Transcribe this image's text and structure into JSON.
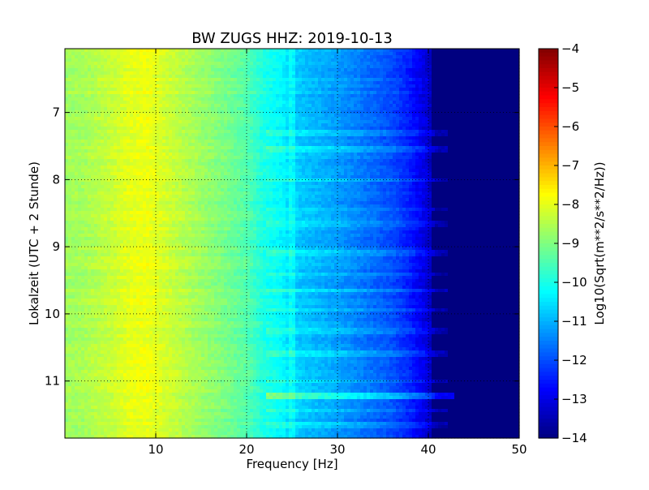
{
  "chart_data": {
    "type": "heatmap",
    "title": "BW ZUGS HHZ: 2019-10-13",
    "xlabel": "Frequency [Hz]",
    "ylabel": "Lokalzeit (UTC + 2 Stunde)",
    "xlim": [
      0,
      50
    ],
    "ylim": [
      6.05,
      11.85
    ],
    "y_inverted": true,
    "x_ticks": [
      10,
      20,
      30,
      40,
      50
    ],
    "x_tick_labels": [
      "10",
      "20",
      "30",
      "40",
      "50"
    ],
    "y_ticks": [
      7,
      8,
      9,
      10,
      11
    ],
    "y_tick_labels": [
      "7",
      "8",
      "9",
      "10",
      "11"
    ],
    "grid": true,
    "colormap": "jet",
    "colorbar": {
      "label": "Log10(Sqrt(m**2/s**2/Hz))",
      "range": [
        -14,
        -4
      ],
      "ticks": [
        -4,
        -5,
        -6,
        -7,
        -8,
        -9,
        -10,
        -11,
        -12,
        -13,
        -14
      ],
      "tick_labels": [
        "−4",
        "−5",
        "−6",
        "−7",
        "−8",
        "−9",
        "−10",
        "−11",
        "−12",
        "−13",
        "−14"
      ]
    },
    "spectrum_profile": {
      "frequency_hz": [
        0,
        2,
        5,
        7,
        9,
        12,
        15,
        18,
        20,
        22,
        24,
        25,
        28,
        30,
        33,
        36,
        38,
        40,
        41,
        45,
        50
      ],
      "log10_amplitude": [
        -8.7,
        -8.6,
        -8.3,
        -8.0,
        -7.9,
        -8.3,
        -8.7,
        -9.1,
        -9.4,
        -10.0,
        -10.3,
        -10.7,
        -11.0,
        -11.2,
        -11.6,
        -12.0,
        -12.5,
        -13.2,
        -13.9,
        -14.0,
        -14.0
      ]
    },
    "bright_bands": [
      {
        "time": 7.3,
        "strength": 0.25,
        "fmax": 42
      },
      {
        "time": 7.55,
        "strength": 0.3,
        "fmax": 42
      },
      {
        "time": 8.0,
        "strength": 0.25,
        "fmax": 42
      },
      {
        "time": 8.45,
        "strength": 0.2,
        "fmax": 42
      },
      {
        "time": 8.65,
        "strength": 0.25,
        "fmax": 42
      },
      {
        "time": 9.1,
        "strength": 0.3,
        "fmax": 42
      },
      {
        "time": 9.4,
        "strength": 0.25,
        "fmax": 42
      },
      {
        "time": 9.65,
        "strength": 0.25,
        "fmax": 42
      },
      {
        "time": 9.95,
        "strength": 0.25,
        "fmax": 42
      },
      {
        "time": 10.25,
        "strength": 0.3,
        "fmax": 42
      },
      {
        "time": 10.6,
        "strength": 0.3,
        "fmax": 42
      },
      {
        "time": 11.0,
        "strength": 0.25,
        "fmax": 42
      },
      {
        "time": 11.22,
        "strength": 0.75,
        "fmax": 43
      },
      {
        "time": 11.45,
        "strength": 0.3,
        "fmax": 42
      },
      {
        "time": 11.65,
        "strength": 0.25,
        "fmax": 42
      }
    ]
  }
}
